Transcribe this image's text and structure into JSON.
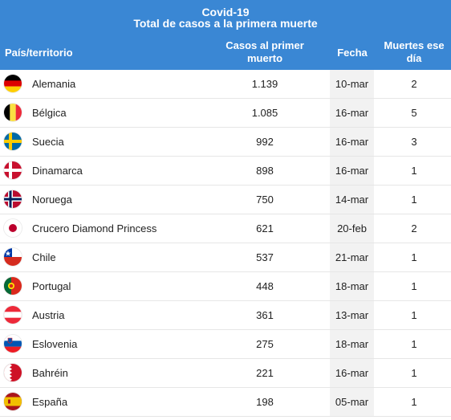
{
  "header": {
    "title": "Covid-19",
    "subtitle": "Total de casos a la primera muerte",
    "background_color": "#3a87d4"
  },
  "columns": {
    "country": "País/territorio",
    "cases": "Casos al primer muerto",
    "date": "Fecha",
    "deaths": "Muertes ese día"
  },
  "rows": [
    {
      "country": "Alemania",
      "cases": "1.139",
      "date": "10-mar",
      "deaths": "2",
      "flag_icon": "germany-flag-icon"
    },
    {
      "country": "Bélgica",
      "cases": "1.085",
      "date": "16-mar",
      "deaths": "5",
      "flag_icon": "belgium-flag-icon"
    },
    {
      "country": "Suecia",
      "cases": "992",
      "date": "16-mar",
      "deaths": "3",
      "flag_icon": "sweden-flag-icon"
    },
    {
      "country": "Dinamarca",
      "cases": "898",
      "date": "16-mar",
      "deaths": "1",
      "flag_icon": "denmark-flag-icon"
    },
    {
      "country": "Noruega",
      "cases": "750",
      "date": "14-mar",
      "deaths": "1",
      "flag_icon": "norway-flag-icon"
    },
    {
      "country": "Crucero Diamond Princess",
      "cases": "621",
      "date": "20-feb",
      "deaths": "2",
      "flag_icon": "japan-flag-icon"
    },
    {
      "country": "Chile",
      "cases": "537",
      "date": "21-mar",
      "deaths": "1",
      "flag_icon": "chile-flag-icon"
    },
    {
      "country": "Portugal",
      "cases": "448",
      "date": "18-mar",
      "deaths": "1",
      "flag_icon": "portugal-flag-icon"
    },
    {
      "country": "Austria",
      "cases": "361",
      "date": "13-mar",
      "deaths": "1",
      "flag_icon": "austria-flag-icon"
    },
    {
      "country": "Eslovenia",
      "cases": "275",
      "date": "18-mar",
      "deaths": "1",
      "flag_icon": "slovenia-flag-icon"
    },
    {
      "country": "Bahréin",
      "cases": "221",
      "date": "16-mar",
      "deaths": "1",
      "flag_icon": "bahrain-flag-icon"
    },
    {
      "country": "España",
      "cases": "198",
      "date": "05-mar",
      "deaths": "1",
      "flag_icon": "spain-flag-icon"
    }
  ]
}
